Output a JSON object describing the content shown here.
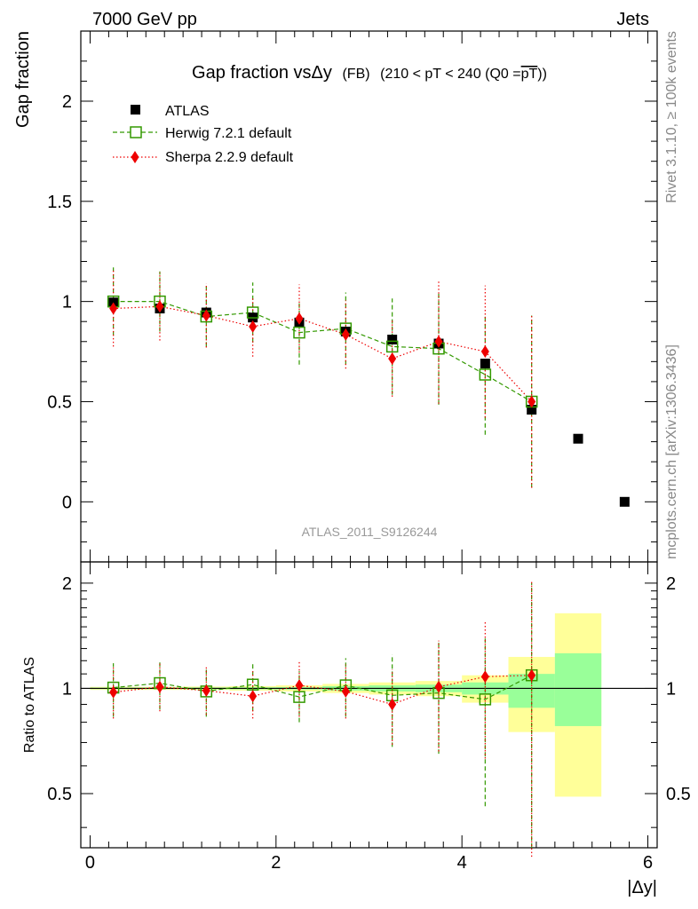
{
  "header": {
    "energy_label": "7000 GeV pp",
    "process_label": "Jets",
    "rivet_label": "Rivet 3.1.10, ≥ 100k events",
    "mcplots_label": "mcplots.cern.ch [arXiv:1306.3436]",
    "analysis_label": "ATLAS_2011_S9126244"
  },
  "chart_data": [
    {
      "type": "scatter",
      "title": "Gap fraction vsΔy",
      "title_suffix": "(FB)",
      "title_cut": "(210 < pT < 240 (Q0 =",
      "title_cut_overline": "pT",
      "title_cut_close": "))",
      "ylabel": "Gap fraction",
      "ylim": [
        -0.3,
        2.35
      ],
      "xlim": [
        -0.1,
        6.1
      ],
      "yticks": [
        {
          "value": 0,
          "label": "0"
        },
        {
          "value": 0.5,
          "label": "0.5"
        },
        {
          "value": 1,
          "label": "1"
        },
        {
          "value": 1.5,
          "label": "1.5"
        },
        {
          "value": 2,
          "label": "2"
        }
      ],
      "legend_placement": "top-left",
      "series": [
        {
          "name": "ATLAS",
          "color": "#000000",
          "marker": "filled-square",
          "x": [
            0.25,
            0.75,
            1.25,
            1.75,
            2.25,
            2.75,
            3.25,
            3.75,
            4.25,
            4.75,
            5.25,
            5.75
          ],
          "y": [
            0.995,
            0.965,
            0.945,
            0.92,
            0.895,
            0.85,
            0.81,
            0.79,
            0.69,
            0.46,
            0.315,
            0.0
          ]
        },
        {
          "name": "Herwig 7.2.1 default",
          "color": "#339900",
          "marker": "open-square",
          "x": [
            0.25,
            0.75,
            1.25,
            1.75,
            2.25,
            2.75,
            3.25,
            3.75,
            4.25,
            4.75
          ],
          "y": [
            1.0,
            1.0,
            0.925,
            0.945,
            0.845,
            0.865,
            0.775,
            0.765,
            0.635,
            0.5
          ],
          "err": [
            0.17,
            0.15,
            0.15,
            0.15,
            0.16,
            0.18,
            0.24,
            0.28,
            0.3,
            0.43
          ]
        },
        {
          "name": "Sherpa 2.2.9 default",
          "color": "#ee0000",
          "marker": "filled-diamond",
          "x": [
            0.25,
            0.75,
            1.25,
            1.75,
            2.25,
            2.75,
            3.25,
            3.75,
            4.25,
            4.75
          ],
          "y": [
            0.965,
            0.975,
            0.93,
            0.875,
            0.915,
            0.835,
            0.715,
            0.8,
            0.75,
            0.5
          ],
          "err": [
            0.19,
            0.17,
            0.16,
            0.15,
            0.17,
            0.17,
            0.19,
            0.31,
            0.33,
            0.43
          ]
        }
      ]
    },
    {
      "type": "scatter",
      "ylabel": "Ratio to ATLAS",
      "xlabel": "|Δy|",
      "ylim": [
        0.35,
        2.3
      ],
      "xlim": [
        -0.1,
        6.1
      ],
      "yscale": "log",
      "yticks": [
        {
          "value": 0.5,
          "label": "0.5"
        },
        {
          "value": 1,
          "label": "1"
        },
        {
          "value": 2,
          "label": "2"
        }
      ],
      "xticks": [
        {
          "value": 0,
          "label": "0"
        },
        {
          "value": 2,
          "label": "2"
        },
        {
          "value": 4,
          "label": "4"
        },
        {
          "value": 6,
          "label": "6"
        }
      ],
      "bands": [
        {
          "x0": 0.0,
          "x1": 0.5,
          "green": [
            0.995,
            1.005
          ],
          "yellow": [
            0.99,
            1.01
          ]
        },
        {
          "x0": 0.5,
          "x1": 1.0,
          "green": [
            0.995,
            1.005
          ],
          "yellow": [
            0.99,
            1.01
          ]
        },
        {
          "x0": 1.0,
          "x1": 1.5,
          "green": [
            0.994,
            1.006
          ],
          "yellow": [
            0.99,
            1.012
          ]
        },
        {
          "x0": 1.5,
          "x1": 2.0,
          "green": [
            0.993,
            1.007
          ],
          "yellow": [
            0.985,
            1.015
          ]
        },
        {
          "x0": 2.0,
          "x1": 2.5,
          "green": [
            0.992,
            1.008
          ],
          "yellow": [
            0.98,
            1.02
          ]
        },
        {
          "x0": 2.5,
          "x1": 3.0,
          "green": [
            0.985,
            1.015
          ],
          "yellow": [
            0.97,
            1.03
          ]
        },
        {
          "x0": 3.0,
          "x1": 3.5,
          "green": [
            0.98,
            1.02
          ],
          "yellow": [
            0.96,
            1.04
          ]
        },
        {
          "x0": 3.5,
          "x1": 4.0,
          "green": [
            0.975,
            1.025
          ],
          "yellow": [
            0.95,
            1.05
          ]
        },
        {
          "x0": 4.0,
          "x1": 4.5,
          "green": [
            0.96,
            1.04
          ],
          "yellow": [
            0.91,
            1.09
          ]
        },
        {
          "x0": 4.5,
          "x1": 5.0,
          "green": [
            0.88,
            1.1
          ],
          "yellow": [
            0.75,
            1.23
          ]
        },
        {
          "x0": 5.0,
          "x1": 5.5,
          "green": [
            0.78,
            1.26
          ],
          "yellow": [
            0.49,
            1.64
          ]
        }
      ],
      "series": [
        {
          "name": "Herwig 7.2.1 default",
          "color": "#339900",
          "marker": "open-square",
          "x": [
            0.25,
            0.75,
            1.25,
            1.75,
            2.25,
            2.75,
            3.25,
            3.75,
            4.25,
            4.75
          ],
          "y": [
            1.005,
            1.035,
            0.98,
            1.025,
            0.945,
            1.02,
            0.955,
            0.97,
            0.93,
            1.09
          ],
          "lo": [
            0.83,
            0.87,
            0.83,
            0.86,
            0.8,
            0.83,
            0.68,
            0.65,
            0.46,
            0.35
          ],
          "hi": [
            1.18,
            1.2,
            1.14,
            1.19,
            1.12,
            1.22,
            1.25,
            1.35,
            1.4,
            2.0
          ]
        },
        {
          "name": "Sherpa 2.2.9 default",
          "color": "#ee0000",
          "marker": "filled-diamond",
          "x": [
            0.25,
            0.75,
            1.25,
            1.75,
            2.25,
            2.75,
            3.25,
            3.75,
            4.25,
            4.75
          ],
          "y": [
            0.975,
            1.01,
            0.985,
            0.95,
            1.02,
            0.98,
            0.9,
            1.01,
            1.08,
            1.09
          ],
          "lo": [
            0.82,
            0.86,
            0.84,
            0.82,
            0.83,
            0.82,
            0.69,
            0.66,
            0.63,
            0.33
          ],
          "hi": [
            1.16,
            1.18,
            1.15,
            1.12,
            1.2,
            1.17,
            1.13,
            1.37,
            1.55,
            2.03
          ]
        }
      ]
    }
  ]
}
